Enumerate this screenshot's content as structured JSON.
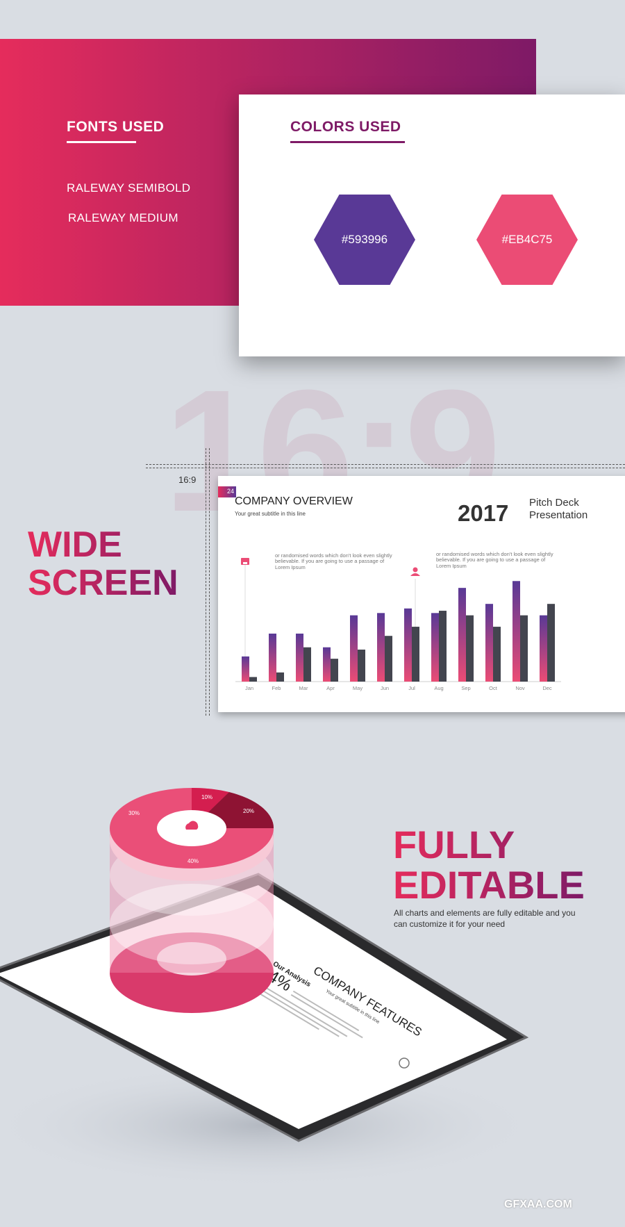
{
  "fonts": {
    "title": "FONTS USED",
    "items": [
      "RALEWAY SEMIBOLD",
      "RALEWAY MEDIUM"
    ]
  },
  "colors": {
    "title": "COLORS USED",
    "swatches": [
      {
        "label": "#593996",
        "hex": "#593996"
      },
      {
        "label": "#EB4C75",
        "hex": "#EB4C75"
      }
    ]
  },
  "watermark": "16:9",
  "ratio_label": "16:9",
  "wide": {
    "line1": "WIDE",
    "line2": "SCREEN"
  },
  "slide": {
    "page": "24",
    "title": "COMPANY OVERVIEW",
    "subtitle": "Your great subtitle in this line",
    "year": "2017",
    "deck1": "Pitch Deck",
    "deck2": "Presentation",
    "note1": "or randomised words which don't look even slightly believable. If you are going to use a passage of Lorem Ipsum",
    "note2": "or randomised words which don't look even slightly believable. If you are going to use a passage of Lorem Ipsum",
    "icons": [
      "store-icon",
      "user-icon"
    ]
  },
  "chart_data": {
    "type": "bar",
    "categories": [
      "Jan",
      "Feb",
      "Mar",
      "Apr",
      "May",
      "Jun",
      "Jul",
      "Aug",
      "Sep",
      "Oct",
      "Nov",
      "Dec"
    ],
    "series": [
      {
        "values": [
          11,
          21,
          21,
          15,
          29,
          30,
          32,
          30,
          41,
          34,
          44,
          29
        ],
        "color": "gradient #593996→#EB4C75"
      },
      {
        "values": [
          2,
          4,
          15,
          10,
          14,
          20,
          24,
          31,
          29,
          24,
          29,
          34
        ],
        "color": "#43454f"
      }
    ],
    "ylim": [
      0,
      45
    ],
    "grid": false
  },
  "fully": {
    "line1": "FULLY",
    "line2": "EDITABLE",
    "desc1": "All charts and elements are fully editable and you",
    "desc2": "can customize it for your need"
  },
  "tablet": {
    "title": "COMPANY FEATURES",
    "subtitle": "Your great subtitle in this line",
    "analysis": "Our Analysis",
    "percent": "94%",
    "pie_labels": [
      "10%",
      "20%",
      "30%",
      "40%"
    ]
  },
  "logo": "GFXAA.COM"
}
